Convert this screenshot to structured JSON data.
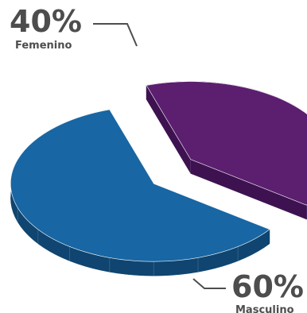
{
  "chart_data": {
    "type": "pie",
    "title": "",
    "slices": [
      {
        "label": "Femenino",
        "value": 40,
        "value_label": "40%",
        "color": "#5c1f70",
        "side_color": "#3e1250"
      },
      {
        "label": "Masculino",
        "value": 60,
        "value_label": "60%",
        "color": "#1866a3",
        "side_color": "#0f4570"
      }
    ],
    "style": "3d-exploded",
    "legend": "none"
  }
}
